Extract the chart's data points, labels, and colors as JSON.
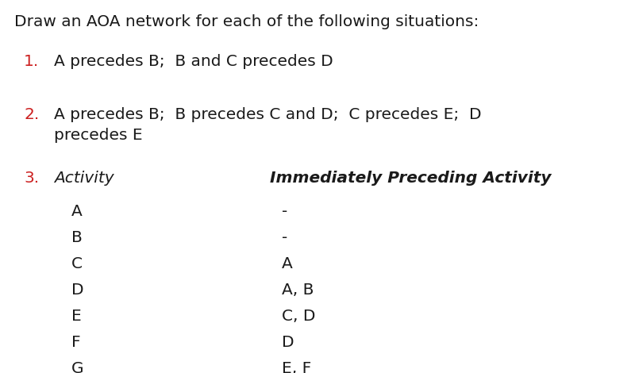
{
  "background_color": "#ffffff",
  "title_text": "Draw an AOA network for each of the following situations:",
  "title_color": "#1a1a1a",
  "title_fontsize": 14.5,
  "items": [
    {
      "number": "1.",
      "number_color": "#cc2020",
      "text": "A precedes B;  B and C precedes D",
      "text_color": "#1a1a1a",
      "text_fontsize": 14.5,
      "italic": false
    },
    {
      "number": "2.",
      "number_color": "#cc2020",
      "text": "A precedes B;  B precedes C and D;  C precedes E;  D\nprecedes E",
      "text_color": "#1a1a1a",
      "text_fontsize": 14.5,
      "italic": false
    },
    {
      "number": "3.",
      "number_color": "#cc2020",
      "text": "Activity",
      "text_color": "#1a1a1a",
      "text_fontsize": 14.5,
      "italic": true,
      "header2": "Immediately Preceding Activity",
      "header2_fontsize": 14.5,
      "header2_color": "#1a1a1a"
    }
  ],
  "table_rows": [
    {
      "activity": "A",
      "preceding": "-"
    },
    {
      "activity": "B",
      "preceding": "-"
    },
    {
      "activity": "C",
      "preceding": "A"
    },
    {
      "activity": "D",
      "preceding": "A, B"
    },
    {
      "activity": "E",
      "preceding": "C, D"
    },
    {
      "activity": "F",
      "preceding": "D"
    },
    {
      "activity": "G",
      "preceding": "E, F"
    }
  ],
  "table_fontsize": 14.5,
  "table_color": "#1a1a1a"
}
